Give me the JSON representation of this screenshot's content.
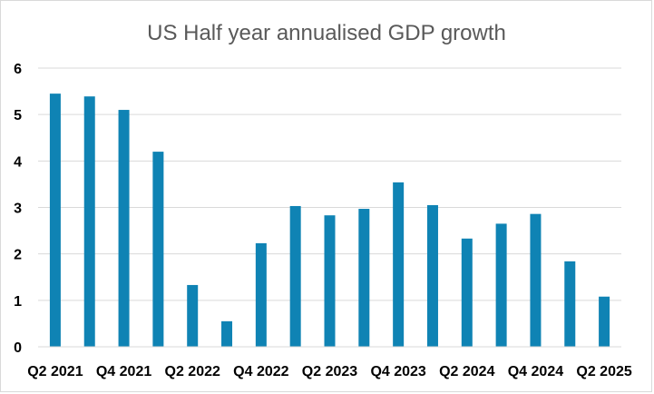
{
  "chart_data": {
    "type": "bar",
    "title": "US Half year annualised GDP growth",
    "xlabel": "",
    "ylabel": "",
    "ylim": [
      0,
      6
    ],
    "yticks": [
      "0",
      "1",
      "2",
      "3",
      "4",
      "5",
      "6"
    ],
    "grid": true,
    "legend": "none",
    "bar_color": "#0f83b4",
    "categories": [
      "Q2 2021",
      "Q3 2021",
      "Q4 2021",
      "Q1 2022",
      "Q2 2022",
      "Q3 2022",
      "Q4 2022",
      "Q1 2023",
      "Q2 2023",
      "Q3 2023",
      "Q4 2023",
      "Q1 2024",
      "Q2 2024",
      "Q3 2024",
      "Q4 2024",
      "Q1 2025",
      "Q2 2025"
    ],
    "tick_labels_shown": [
      "Q2 2021",
      "Q4 2021",
      "Q2 2022",
      "Q4 2022",
      "Q2 2023",
      "Q4 2023",
      "Q2 2024",
      "Q4 2024",
      "Q2 2025"
    ],
    "values": [
      5.45,
      5.39,
      5.1,
      4.2,
      1.33,
      0.55,
      2.23,
      3.03,
      2.83,
      2.97,
      3.54,
      3.05,
      2.33,
      2.65,
      2.86,
      1.84,
      1.08
    ]
  }
}
